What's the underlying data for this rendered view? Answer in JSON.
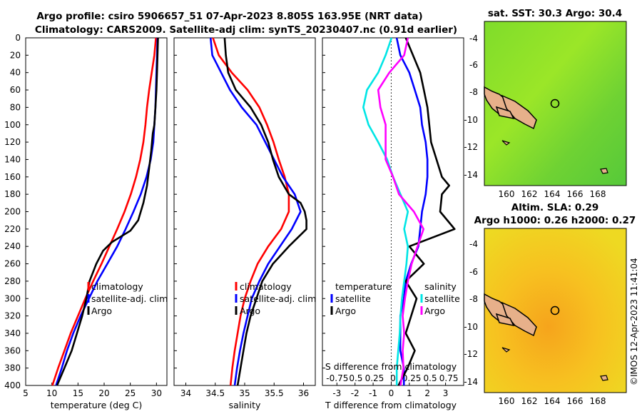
{
  "header": {
    "line1": "Argo profile: csiro 5906657_51 07-Apr-2023 8.805S 163.95E (NRT data)",
    "line2": "Climatology: CARS2009. Satellite-adj clim: synTS_20230407.nc (0.91d earlier)"
  },
  "colors": {
    "climatology": "#ff0000",
    "satellite": "#0000ff",
    "argo": "#000000",
    "salinity": "#ff00ff",
    "sat_sal": "#00e5e5"
  },
  "depth_ticks": [
    "0",
    "20",
    "40",
    "60",
    "80",
    "100",
    "120",
    "140",
    "160",
    "180",
    "200",
    "220",
    "240",
    "260",
    "280",
    "300",
    "320",
    "340",
    "360",
    "380",
    "400"
  ],
  "chart_data": [
    {
      "type": "line",
      "xlabel": "temperature (deg C)",
      "xlim": [
        5,
        32
      ],
      "ylim": [
        0,
        400
      ],
      "xticks": [
        "5",
        "10",
        "15",
        "20",
        "25",
        "30"
      ],
      "legend": [
        "climatology",
        "satellite-adj. clim",
        "Argo"
      ],
      "series": [
        {
          "name": "climatology",
          "depth": [
            0,
            20,
            40,
            60,
            80,
            100,
            120,
            140,
            160,
            180,
            200,
            220,
            240,
            260,
            280,
            300,
            320,
            340,
            360,
            380,
            400
          ],
          "values": [
            29.9,
            29.6,
            29.1,
            28.6,
            28.2,
            27.9,
            27.5,
            26.9,
            26.1,
            25.1,
            23.9,
            22.5,
            21.0,
            19.5,
            17.9,
            16.4,
            15.0,
            13.6,
            12.4,
            11.2,
            10.1
          ]
        },
        {
          "name": "satellite-adj. clim",
          "depth": [
            0,
            20,
            40,
            60,
            80,
            100,
            120,
            140,
            160,
            180,
            200,
            220,
            240,
            260,
            280,
            300,
            320,
            340,
            360,
            380,
            400
          ],
          "values": [
            30.2,
            30.1,
            30.0,
            29.9,
            29.8,
            29.6,
            29.4,
            28.9,
            28.1,
            27.0,
            25.6,
            24.1,
            22.5,
            20.6,
            18.7,
            17.1,
            15.5,
            14.1,
            12.9,
            11.9,
            10.8
          ]
        },
        {
          "name": "Argo",
          "depth": [
            0,
            20,
            40,
            60,
            80,
            100,
            110,
            130,
            150,
            170,
            190,
            210,
            222,
            235,
            245,
            260,
            280,
            300,
            320,
            340,
            360,
            380,
            400
          ],
          "values": [
            30.3,
            30.2,
            30.1,
            30.0,
            29.8,
            29.6,
            29.3,
            29.0,
            28.6,
            28.2,
            27.5,
            26.5,
            25.0,
            21.5,
            19.8,
            18.5,
            17.2,
            16.6,
            15.8,
            14.8,
            13.8,
            12.4,
            11.0
          ]
        }
      ]
    },
    {
      "type": "line",
      "xlabel": "salinity",
      "xlim": [
        33.8,
        36.2
      ],
      "ylim": [
        0,
        400
      ],
      "xticks": [
        "34",
        "34.5",
        "35",
        "35.5",
        "36"
      ],
      "legend": [
        "climatology",
        "satellite-adj. clim",
        "Argo"
      ],
      "series": [
        {
          "name": "climatology",
          "depth": [
            0,
            20,
            40,
            60,
            80,
            100,
            120,
            140,
            160,
            180,
            200,
            220,
            240,
            260,
            280,
            300,
            320,
            340,
            360,
            380,
            400
          ],
          "values": [
            34.46,
            34.56,
            34.78,
            35.05,
            35.25,
            35.38,
            35.49,
            35.58,
            35.68,
            35.75,
            35.75,
            35.62,
            35.4,
            35.22,
            35.1,
            35.0,
            34.93,
            34.88,
            34.83,
            34.79,
            34.76
          ]
        },
        {
          "name": "satellite-adj. clim",
          "depth": [
            0,
            20,
            40,
            60,
            80,
            100,
            120,
            140,
            160,
            180,
            200,
            220,
            240,
            260,
            280,
            300,
            320,
            340,
            360,
            380,
            400
          ],
          "values": [
            34.42,
            34.45,
            34.6,
            34.75,
            34.95,
            35.2,
            35.35,
            35.5,
            35.65,
            35.85,
            35.95,
            35.8,
            35.6,
            35.4,
            35.25,
            35.12,
            35.05,
            34.98,
            34.92,
            34.87,
            34.83
          ]
        },
        {
          "name": "Argo",
          "depth": [
            0,
            20,
            40,
            60,
            80,
            100,
            120,
            140,
            160,
            180,
            190,
            200,
            210,
            220,
            240,
            260,
            280,
            300,
            320,
            340,
            360,
            380,
            400
          ],
          "values": [
            34.66,
            34.68,
            34.72,
            34.85,
            35.1,
            35.28,
            35.4,
            35.48,
            35.58,
            35.75,
            35.95,
            36.02,
            36.05,
            36.05,
            35.75,
            35.48,
            35.3,
            35.2,
            35.1,
            35.03,
            34.98,
            34.93,
            34.88
          ]
        }
      ]
    },
    {
      "type": "line",
      "xlabel": "T difference from climatology",
      "x2label": "S difference from climatology",
      "xlim": [
        -3.8,
        4.0
      ],
      "slim": [
        -0.95,
        0.95
      ],
      "ylim": [
        0,
        400
      ],
      "xticks": [
        "-3",
        "-2",
        "-1",
        "0",
        "1",
        "2",
        "3"
      ],
      "x2ticks": [
        "-0.75",
        "0.5",
        "0.25",
        "0",
        "0.25",
        "0.5",
        "0.75"
      ],
      "legend_left": [
        "temperature",
        "satellite",
        "Argo"
      ],
      "legend_right": [
        "salinity",
        "satellite",
        "Argo"
      ],
      "series": [
        {
          "name": "temperature satellite",
          "axis": "T",
          "depth": [
            0,
            20,
            40,
            60,
            80,
            100,
            120,
            140,
            160,
            180,
            200,
            220,
            240,
            260,
            280,
            300,
            320,
            340,
            360,
            380,
            400
          ],
          "values": [
            0.3,
            0.5,
            1.0,
            1.3,
            1.6,
            1.7,
            1.9,
            2.0,
            2.0,
            1.9,
            1.7,
            1.6,
            1.5,
            1.1,
            0.8,
            0.7,
            0.5,
            0.5,
            0.5,
            0.7,
            0.7
          ]
        },
        {
          "name": "temperature Argo",
          "axis": "T",
          "depth": [
            0,
            20,
            40,
            60,
            80,
            100,
            120,
            140,
            160,
            170,
            180,
            200,
            220,
            240,
            260,
            280,
            300,
            320,
            340,
            360,
            380,
            400
          ],
          "values": [
            0.8,
            1.2,
            1.6,
            1.8,
            2.0,
            2.1,
            2.2,
            2.5,
            2.8,
            3.2,
            2.8,
            2.7,
            3.5,
            1.0,
            1.8,
            0.8,
            1.4,
            1.1,
            0.8,
            1.3,
            0.9,
            0.4
          ]
        },
        {
          "name": "salinity satellite",
          "axis": "S",
          "depth": [
            0,
            20,
            40,
            60,
            80,
            100,
            120,
            140,
            160,
            180,
            200,
            220,
            240,
            260,
            280,
            300,
            320,
            340,
            360,
            380,
            400
          ],
          "values": [
            -0.02,
            -0.1,
            -0.2,
            -0.35,
            -0.4,
            -0.33,
            -0.2,
            -0.08,
            0.0,
            0.1,
            0.2,
            0.15,
            0.2,
            0.18,
            0.15,
            0.12,
            0.1,
            0.09,
            0.07,
            0.05,
            0.05
          ]
        },
        {
          "name": "salinity Argo",
          "axis": "S",
          "depth": [
            0,
            20,
            40,
            60,
            80,
            100,
            120,
            140,
            160,
            180,
            200,
            220,
            240,
            260,
            280,
            300,
            320,
            340,
            360,
            380,
            400
          ],
          "values": [
            0.2,
            0.15,
            -0.05,
            -0.2,
            -0.17,
            -0.1,
            -0.1,
            -0.1,
            0.0,
            0.08,
            0.28,
            0.41,
            0.33,
            0.25,
            0.2,
            0.16,
            0.13,
            0.15,
            0.13,
            0.14,
            0.1
          ]
        }
      ]
    }
  ],
  "map_sst": {
    "title": "sat. SST: 30.3  Argo: 30.4",
    "yticks": [
      "-4",
      "-6",
      "-8",
      "-10",
      "-12",
      "-14"
    ],
    "xticks": [
      "160",
      "162",
      "164",
      "166",
      "168"
    ]
  },
  "map_sla": {
    "title1": "Altim. SLA: 0.29",
    "title2": "Argo h1000: 0.26 h2000: 0.27",
    "yticks": [
      "-4",
      "-6",
      "-8",
      "-10",
      "-12",
      "-14"
    ],
    "xticks": [
      "160",
      "162",
      "164",
      "166",
      "168"
    ]
  },
  "credit": "©IMOS 12-Apr-2023 11:41:04"
}
